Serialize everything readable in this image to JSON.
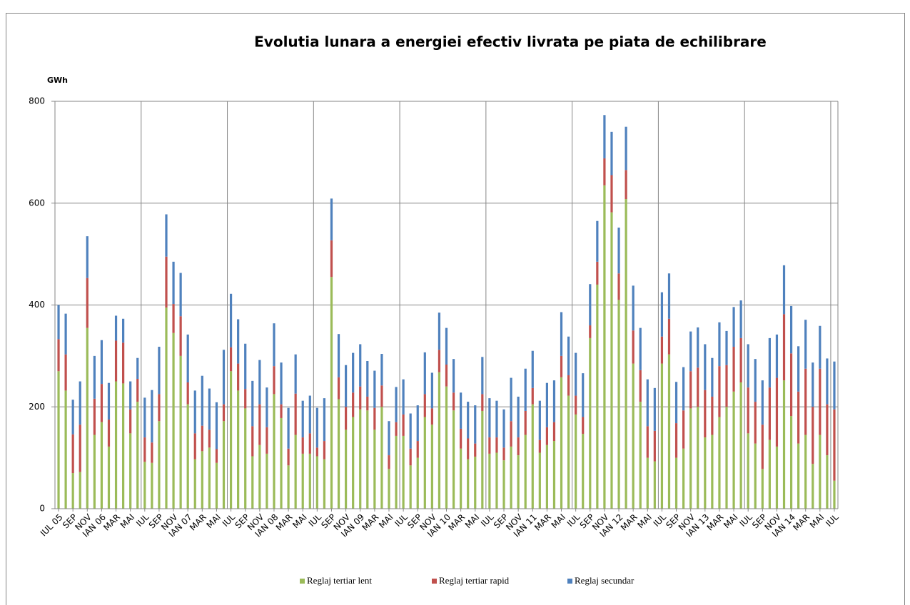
{
  "chart_data": {
    "type": "stacked_bar",
    "title": "Evolutia lunara a energiei efectiv livrata pe piata de echilibrare",
    "y_label": "GWh",
    "categories": [
      "IUL 05",
      null,
      "SEP",
      null,
      "NOV",
      null,
      "IAN 06",
      null,
      "MAR",
      null,
      "MAI",
      null,
      "IUL",
      null,
      "SEP",
      null,
      "NOV",
      null,
      "IAN 07",
      null,
      "MAR",
      null,
      "MAI",
      null,
      "IUL",
      null,
      "SEP",
      null,
      "NOV",
      null,
      "IAN 08",
      null,
      "MAR",
      null,
      "MAI",
      null,
      "IUL",
      null,
      "SEP",
      null,
      "NOV",
      null,
      "IAN 09",
      null,
      "MAR",
      null,
      "MAI",
      null,
      "IUL",
      null,
      "SEP",
      null,
      "NOV",
      null,
      "IAN 10",
      null,
      "MAR",
      null,
      "MAI",
      null,
      "IUL",
      null,
      "SEP",
      null,
      "NOV",
      null,
      "IAN 11",
      null,
      "MAR",
      null,
      "MAI",
      null,
      "IUL",
      null,
      "SEP",
      null,
      "NOV",
      null,
      "IAN 12",
      null,
      "MAR",
      null,
      "MAI",
      null,
      "IUL",
      null,
      "SEP",
      null,
      "NOV",
      null,
      "IAN 13",
      null,
      "MAR",
      null,
      "MAI",
      null,
      "IUL",
      null,
      "SEP",
      null,
      "NOV",
      null,
      "IAN 14",
      null,
      "MAR",
      null,
      "MAI",
      null,
      "IUL"
    ],
    "series": [
      {
        "name": "Reglaj tertiar lent",
        "color": "#9bbb59",
        "values": [
          270,
          232,
          70,
          72,
          355,
          145,
          170,
          122,
          250,
          246,
          148,
          210,
          92,
          90,
          172,
          395,
          345,
          300,
          205,
          97,
          113,
          120,
          90,
          172,
          270,
          232,
          197,
          103,
          125,
          108,
          225,
          178,
          85,
          145,
          108,
          108,
          103,
          97,
          455,
          215,
          155,
          180,
          195,
          193,
          155,
          200,
          78,
          143,
          143,
          85,
          100,
          180,
          165,
          268,
          240,
          193,
          118,
          97,
          102,
          192,
          108,
          110,
          95,
          122,
          105,
          145,
          205,
          110,
          125,
          133,
          258,
          222,
          185,
          147,
          335,
          440,
          635,
          582,
          410,
          608,
          285,
          210,
          100,
          93,
          285,
          303,
          100,
          118,
          197,
          200,
          140,
          145,
          180,
          200,
          230,
          248,
          148,
          128,
          78,
          135,
          122,
          252,
          182,
          128,
          145,
          88,
          145,
          105,
          55
        ]
      },
      {
        "name": "Reglaj tertiar rapid",
        "color": "#c0504d",
        "values": [
          63,
          71,
          76,
          93,
          98,
          71,
          75,
          53,
          80,
          80,
          47,
          45,
          48,
          40,
          53,
          100,
          57,
          78,
          43,
          51,
          50,
          35,
          27,
          33,
          47,
          53,
          38,
          59,
          80,
          52,
          55,
          27,
          33,
          81,
          32,
          40,
          17,
          36,
          72,
          43,
          45,
          48,
          45,
          27,
          43,
          42,
          27,
          27,
          42,
          33,
          33,
          45,
          32,
          44,
          43,
          35,
          39,
          41,
          26,
          33,
          32,
          30,
          25,
          50,
          35,
          47,
          32,
          25,
          35,
          37,
          42,
          40,
          37,
          33,
          25,
          45,
          53,
          73,
          52,
          57,
          65,
          62,
          62,
          60,
          53,
          70,
          68,
          75,
          73,
          77,
          93,
          75,
          100,
          82,
          88,
          87,
          90,
          82,
          87,
          103,
          135,
          130,
          123,
          102,
          130,
          112,
          130,
          100,
          140
        ]
      },
      {
        "name": "Reglaj secundar",
        "color": "#4f81bd",
        "values": [
          67,
          80,
          68,
          85,
          82,
          84,
          86,
          72,
          49,
          47,
          55,
          41,
          78,
          103,
          93,
          83,
          83,
          85,
          94,
          84,
          98,
          81,
          92,
          107,
          105,
          87,
          89,
          89,
          87,
          78,
          84,
          82,
          80,
          77,
          72,
          74,
          78,
          84,
          82,
          85,
          82,
          78,
          83,
          70,
          73,
          62,
          67,
          69,
          69,
          69,
          70,
          82,
          70,
          73,
          72,
          66,
          71,
          72,
          75,
          73,
          77,
          72,
          75,
          85,
          80,
          83,
          73,
          77,
          87,
          82,
          86,
          76,
          84,
          86,
          81,
          80,
          85,
          85,
          90,
          85,
          88,
          83,
          92,
          84,
          87,
          89,
          81,
          85,
          78,
          79,
          90,
          76,
          86,
          67,
          78,
          74,
          85,
          84,
          87,
          97,
          85,
          96,
          93,
          89,
          96,
          87,
          84,
          90,
          94
        ]
      }
    ],
    "ylim": [
      0,
      800
    ],
    "yticks": [
      0,
      200,
      400,
      600,
      800
    ],
    "grid": true
  }
}
